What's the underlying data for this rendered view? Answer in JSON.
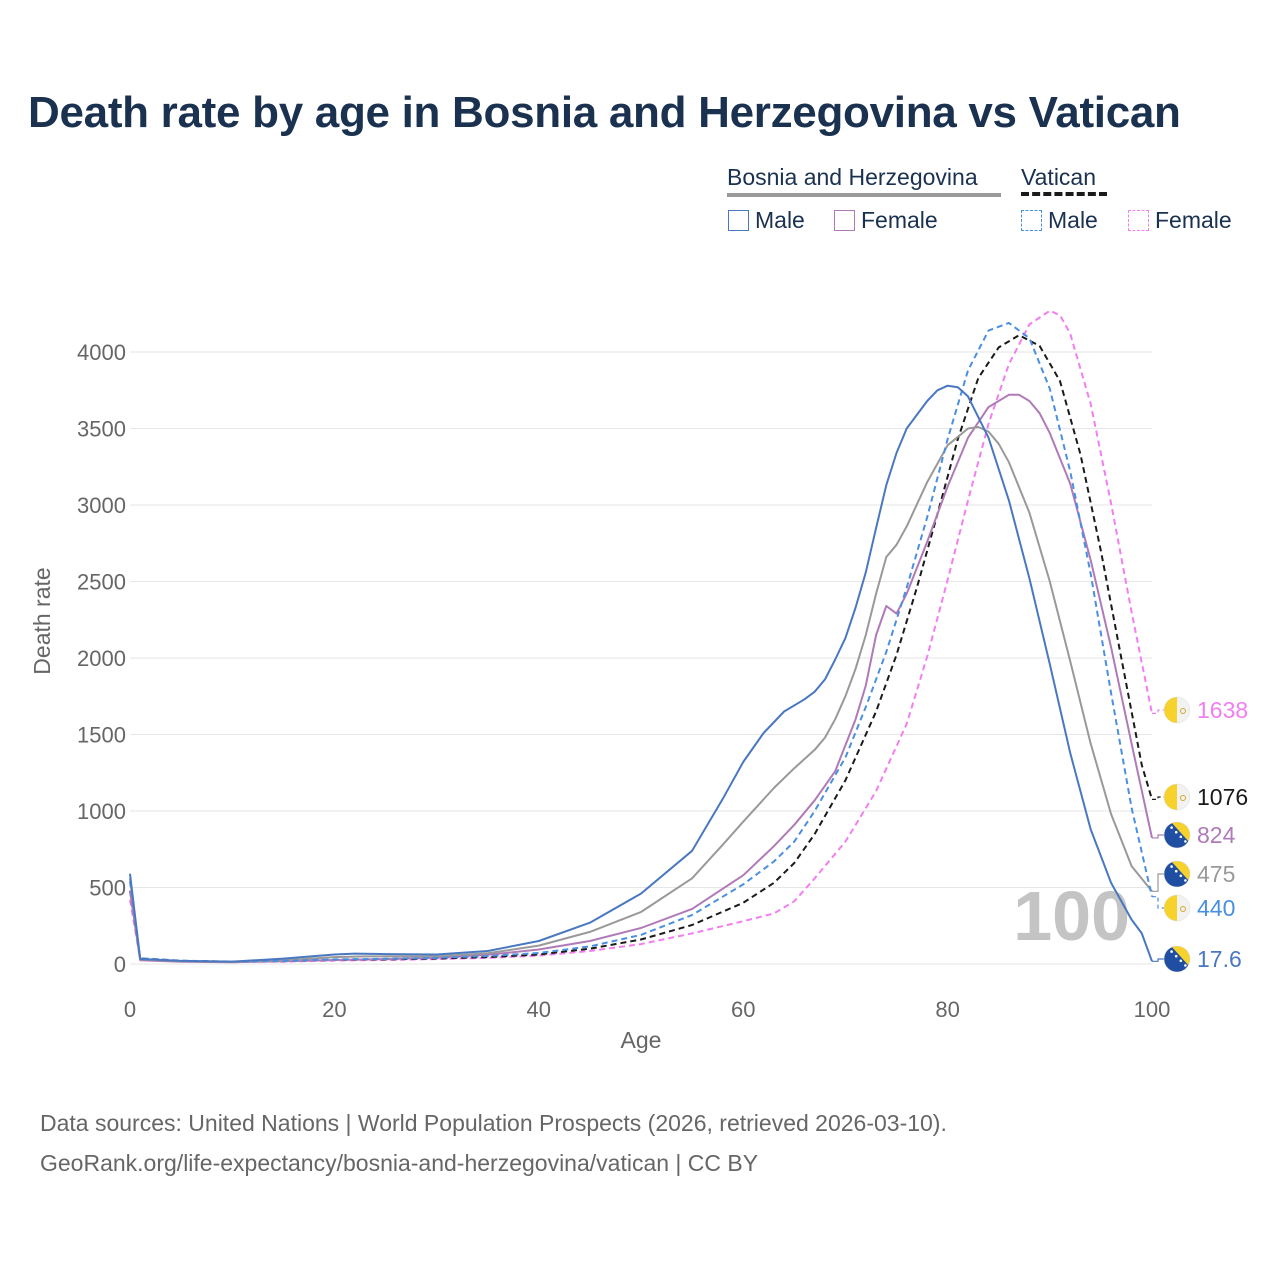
{
  "title": "Death rate by age in Bosnia and Herzegovina vs Vatican",
  "legend": {
    "group1": {
      "title": "Bosnia and Herzegovina",
      "male": "Male",
      "female": "Female"
    },
    "group2": {
      "title": "Vatican",
      "male": "Male",
      "female": "Female"
    }
  },
  "footer": {
    "line1": "Data sources: United Nations | World Population Prospects (2026, retrieved 2026-03-10).",
    "line2": "GeoRank.org/life-expectancy/bosnia-and-herzegovina/vatican | CC BY"
  },
  "chart_data": {
    "type": "line",
    "title": "Death rate by age in Bosnia and Herzegovina vs Vatican",
    "xlabel": "Age",
    "ylabel": "Death rate",
    "xlim": [
      0,
      100
    ],
    "ylim": [
      0,
      4300
    ],
    "xticks": [
      0,
      20,
      40,
      60,
      80,
      100
    ],
    "yticks": [
      0,
      500,
      1000,
      1500,
      2000,
      2500,
      3000,
      3500,
      4000
    ],
    "grid": true,
    "watermark": "100",
    "series": [
      {
        "name": "Vatican Female",
        "country": "Vatican",
        "sex": "Female",
        "color": "#f27ef0",
        "dashed": true,
        "end_label": "1638",
        "flag": "vatican",
        "points": [
          [
            0,
            420
          ],
          [
            1,
            30
          ],
          [
            5,
            18
          ],
          [
            10,
            14
          ],
          [
            15,
            16
          ],
          [
            20,
            22
          ],
          [
            25,
            26
          ],
          [
            30,
            32
          ],
          [
            35,
            40
          ],
          [
            40,
            55
          ],
          [
            45,
            85
          ],
          [
            50,
            130
          ],
          [
            55,
            200
          ],
          [
            60,
            280
          ],
          [
            63,
            330
          ],
          [
            65,
            410
          ],
          [
            67,
            560
          ],
          [
            70,
            800
          ],
          [
            73,
            1130
          ],
          [
            76,
            1570
          ],
          [
            78,
            2010
          ],
          [
            80,
            2510
          ],
          [
            82,
            3030
          ],
          [
            84,
            3530
          ],
          [
            86,
            3920
          ],
          [
            88,
            4180
          ],
          [
            90,
            4270
          ],
          [
            91,
            4240
          ],
          [
            92,
            4120
          ],
          [
            94,
            3660
          ],
          [
            96,
            3010
          ],
          [
            98,
            2300
          ],
          [
            100,
            1638
          ]
        ]
      },
      {
        "name": "Vatican Total",
        "country": "Vatican",
        "sex": "Total",
        "color": "#1a1a1a",
        "dashed": true,
        "end_label": "1076",
        "flag": "vatican",
        "points": [
          [
            0,
            480
          ],
          [
            1,
            35
          ],
          [
            5,
            20
          ],
          [
            10,
            15
          ],
          [
            15,
            18
          ],
          [
            20,
            26
          ],
          [
            25,
            30
          ],
          [
            30,
            36
          ],
          [
            35,
            45
          ],
          [
            40,
            62
          ],
          [
            45,
            100
          ],
          [
            50,
            160
          ],
          [
            55,
            255
          ],
          [
            60,
            400
          ],
          [
            63,
            530
          ],
          [
            65,
            660
          ],
          [
            67,
            850
          ],
          [
            70,
            1200
          ],
          [
            73,
            1650
          ],
          [
            75,
            2020
          ],
          [
            77,
            2460
          ],
          [
            79,
            2940
          ],
          [
            81,
            3430
          ],
          [
            83,
            3830
          ],
          [
            85,
            4030
          ],
          [
            87,
            4110
          ],
          [
            89,
            4040
          ],
          [
            91,
            3810
          ],
          [
            93,
            3330
          ],
          [
            95,
            2700
          ],
          [
            97,
            2000
          ],
          [
            99,
            1300
          ],
          [
            100,
            1076
          ]
        ]
      },
      {
        "name": "Bosnia and Herzegovina Female",
        "country": "Bosnia and Herzegovina",
        "sex": "Female",
        "color": "#b07ab8",
        "dashed": false,
        "end_label": "824",
        "flag": "bosnia",
        "points": [
          [
            0,
            480
          ],
          [
            1,
            25
          ],
          [
            5,
            15
          ],
          [
            10,
            12
          ],
          [
            15,
            18
          ],
          [
            20,
            26
          ],
          [
            25,
            32
          ],
          [
            30,
            42
          ],
          [
            35,
            60
          ],
          [
            40,
            95
          ],
          [
            45,
            150
          ],
          [
            50,
            235
          ],
          [
            55,
            360
          ],
          [
            60,
            580
          ],
          [
            63,
            770
          ],
          [
            65,
            910
          ],
          [
            67,
            1070
          ],
          [
            69,
            1260
          ],
          [
            71,
            1600
          ],
          [
            72,
            1820
          ],
          [
            73,
            2150
          ],
          [
            74,
            2340
          ],
          [
            75,
            2290
          ],
          [
            76,
            2420
          ],
          [
            78,
            2760
          ],
          [
            80,
            3120
          ],
          [
            82,
            3440
          ],
          [
            84,
            3640
          ],
          [
            86,
            3720
          ],
          [
            87,
            3720
          ],
          [
            88,
            3680
          ],
          [
            89,
            3600
          ],
          [
            90,
            3470
          ],
          [
            92,
            3140
          ],
          [
            94,
            2640
          ],
          [
            96,
            2070
          ],
          [
            98,
            1440
          ],
          [
            100,
            824
          ]
        ]
      },
      {
        "name": "Bosnia and Herzegovina Total",
        "country": "Bosnia and Herzegovina",
        "sex": "Total",
        "color": "#999999",
        "dashed": false,
        "end_label": "475",
        "flag": "bosnia",
        "points": [
          [
            0,
            560
          ],
          [
            1,
            30
          ],
          [
            5,
            18
          ],
          [
            10,
            14
          ],
          [
            15,
            25
          ],
          [
            20,
            45
          ],
          [
            23,
            50
          ],
          [
            30,
            50
          ],
          [
            35,
            70
          ],
          [
            40,
            120
          ],
          [
            45,
            210
          ],
          [
            50,
            340
          ],
          [
            55,
            560
          ],
          [
            58,
            780
          ],
          [
            60,
            930
          ],
          [
            63,
            1150
          ],
          [
            65,
            1280
          ],
          [
            67,
            1400
          ],
          [
            68,
            1480
          ],
          [
            69,
            1600
          ],
          [
            70,
            1750
          ],
          [
            71,
            1930
          ],
          [
            72,
            2150
          ],
          [
            73,
            2420
          ],
          [
            74,
            2660
          ],
          [
            75,
            2740
          ],
          [
            76,
            2860
          ],
          [
            78,
            3150
          ],
          [
            80,
            3390
          ],
          [
            82,
            3500
          ],
          [
            83,
            3510
          ],
          [
            84,
            3480
          ],
          [
            85,
            3400
          ],
          [
            86,
            3280
          ],
          [
            88,
            2950
          ],
          [
            90,
            2500
          ],
          [
            92,
            1980
          ],
          [
            94,
            1440
          ],
          [
            96,
            980
          ],
          [
            98,
            640
          ],
          [
            100,
            475
          ]
        ]
      },
      {
        "name": "Vatican Male",
        "country": "Vatican",
        "sex": "Male",
        "color": "#4a8fe0",
        "dashed": true,
        "end_label": "440",
        "flag": "vatican",
        "points": [
          [
            0,
            540
          ],
          [
            1,
            38
          ],
          [
            5,
            22
          ],
          [
            10,
            16
          ],
          [
            15,
            20
          ],
          [
            20,
            30
          ],
          [
            25,
            34
          ],
          [
            30,
            40
          ],
          [
            35,
            52
          ],
          [
            40,
            72
          ],
          [
            45,
            115
          ],
          [
            50,
            190
          ],
          [
            55,
            320
          ],
          [
            60,
            520
          ],
          [
            63,
            670
          ],
          [
            65,
            800
          ],
          [
            67,
            1000
          ],
          [
            70,
            1350
          ],
          [
            72,
            1680
          ],
          [
            74,
            2040
          ],
          [
            76,
            2460
          ],
          [
            78,
            2920
          ],
          [
            80,
            3430
          ],
          [
            82,
            3880
          ],
          [
            84,
            4140
          ],
          [
            86,
            4190
          ],
          [
            88,
            4090
          ],
          [
            90,
            3760
          ],
          [
            92,
            3220
          ],
          [
            94,
            2550
          ],
          [
            96,
            1770
          ],
          [
            98,
            1020
          ],
          [
            100,
            440
          ]
        ]
      },
      {
        "name": "Bosnia and Herzegovina Male",
        "country": "Bosnia and Herzegovina",
        "sex": "Male",
        "color": "#4a78c0",
        "dashed": false,
        "end_label": "17.6",
        "flag": "bosnia",
        "points": [
          [
            0,
            590
          ],
          [
            1,
            33
          ],
          [
            5,
            20
          ],
          [
            10,
            16
          ],
          [
            15,
            35
          ],
          [
            20,
            62
          ],
          [
            22,
            68
          ],
          [
            25,
            65
          ],
          [
            30,
            62
          ],
          [
            35,
            85
          ],
          [
            40,
            150
          ],
          [
            45,
            270
          ],
          [
            50,
            460
          ],
          [
            55,
            740
          ],
          [
            58,
            1080
          ],
          [
            60,
            1320
          ],
          [
            62,
            1510
          ],
          [
            64,
            1650
          ],
          [
            66,
            1730
          ],
          [
            67,
            1780
          ],
          [
            68,
            1860
          ],
          [
            69,
            1990
          ],
          [
            70,
            2130
          ],
          [
            71,
            2330
          ],
          [
            72,
            2560
          ],
          [
            73,
            2850
          ],
          [
            74,
            3130
          ],
          [
            75,
            3340
          ],
          [
            76,
            3500
          ],
          [
            78,
            3680
          ],
          [
            79,
            3750
          ],
          [
            80,
            3780
          ],
          [
            81,
            3770
          ],
          [
            82,
            3710
          ],
          [
            84,
            3440
          ],
          [
            86,
            3030
          ],
          [
            88,
            2520
          ],
          [
            90,
            1960
          ],
          [
            92,
            1380
          ],
          [
            94,
            880
          ],
          [
            96,
            530
          ],
          [
            98,
            290
          ],
          [
            99,
            200
          ],
          [
            100,
            17.6
          ]
        ]
      }
    ]
  }
}
